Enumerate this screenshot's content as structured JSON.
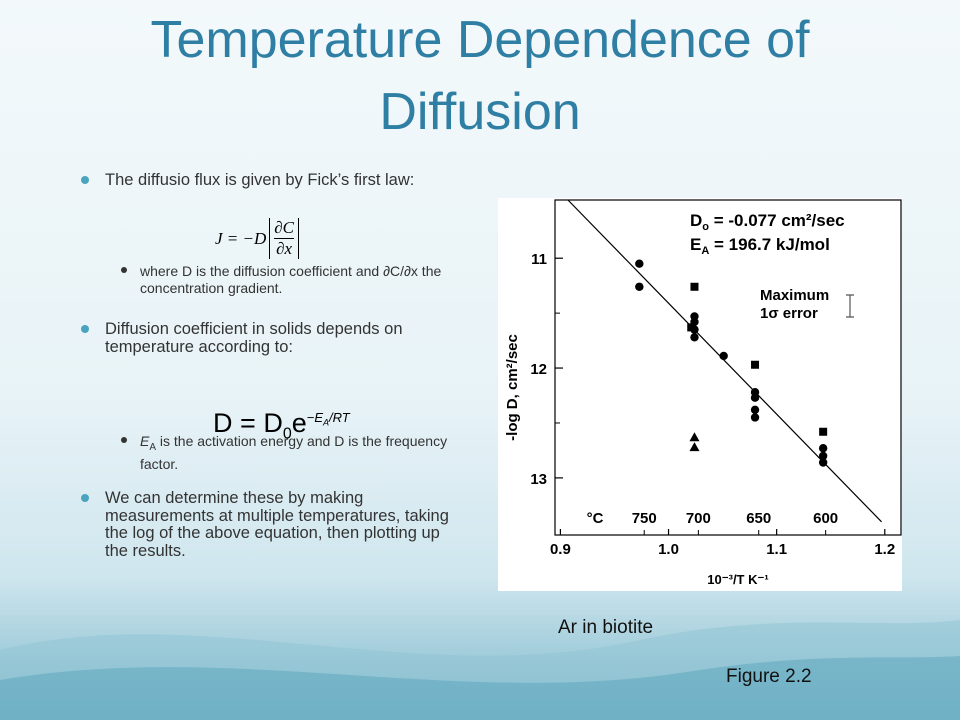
{
  "title": "Temperature Dependence of Diffusion",
  "bullets": [
    {
      "text": "The diffusio flux is given by Fick’s first law:",
      "equation": {
        "lhs": "J = −D",
        "numerator": "∂C",
        "denominator": "∂x"
      },
      "sub_bullets": [
        {
          "text": "where D is the diffusion coefficient and ∂C/∂x the concentration gradient."
        }
      ]
    },
    {
      "text": "Diffusion coefficient in solids depends on temperature according to:",
      "equation": {
        "lhs": "D",
        "op": "=",
        "rhs": "D",
        "subscript": "0",
        "base": "e",
        "exponent": {
          "symbol": "−E",
          "subscript": "A",
          "text": "/RT"
        }
      },
      "sub_bullets": [
        {
          "symbol": "E",
          "subscript": "A",
          "text": " is the activation energy and D is the frequency factor."
        }
      ]
    },
    {
      "text": "We can determine these by making measurements at multiple temperatures, taking the log of the above equation, then plotting up the results."
    }
  ],
  "chart_data": {
    "type": "scatter",
    "x_label": "10⁻³/T K⁻¹",
    "y_label": "-log D, cm²/sec",
    "xlim": [
      0.895,
      1.215
    ],
    "xticks": [
      0.9,
      {
        "value": 1,
        "label": "1.0"
      },
      1.1,
      1.2
    ],
    "ylim": [
      13.52,
      10.47
    ],
    "yticks": [
      11,
      12,
      13
    ],
    "y_minor_ticks": [
      11.5,
      12.5
    ],
    "x2_label": "°C",
    "x2ticks": [
      {
        "value": 0.9775,
        "label": "750"
      },
      {
        "value": 1.0276,
        "label": "700"
      },
      {
        "value": 1.0834,
        "label": "650"
      },
      {
        "value": 1.1453,
        "label": "600"
      }
    ],
    "series": [
      {
        "marker": "circle",
        "color": "#000000",
        "x": [
          0.973,
          0.973,
          1.024,
          1.024,
          1.024,
          1.024,
          1.051,
          1.08,
          1.08,
          1.08,
          1.08,
          1.143,
          1.143,
          1.143
        ],
        "values": [
          11.05,
          11.26,
          11.53,
          11.58,
          11.65,
          11.72,
          11.89,
          12.22,
          12.27,
          12.38,
          12.45,
          12.73,
          12.8,
          12.86
        ]
      },
      {
        "marker": "square",
        "color": "#000000",
        "x": [
          1.024,
          1.021,
          1.08,
          1.143
        ],
        "values": [
          11.26,
          11.63,
          11.97,
          12.58
        ]
      },
      {
        "marker": "triangle",
        "color": "#000000",
        "x": [
          1.024,
          1.024
        ],
        "values": [
          12.63,
          12.72
        ]
      }
    ],
    "fit_line": {
      "x": [
        0.907,
        1.197
      ],
      "y": [
        10.47,
        13.4
      ],
      "color": "#000000"
    },
    "annotations": [
      {
        "symbol": "D",
        "subscript": "o",
        "text": " = -0.077 cm²/sec"
      },
      {
        "symbol": "E",
        "subscript": "A",
        "text": " = 196.7 kJ/mol"
      },
      {
        "text": "Maximum"
      },
      {
        "text": "1σ error"
      }
    ]
  },
  "caption": "Ar in biotite",
  "figure_label": "Figure 2.2"
}
